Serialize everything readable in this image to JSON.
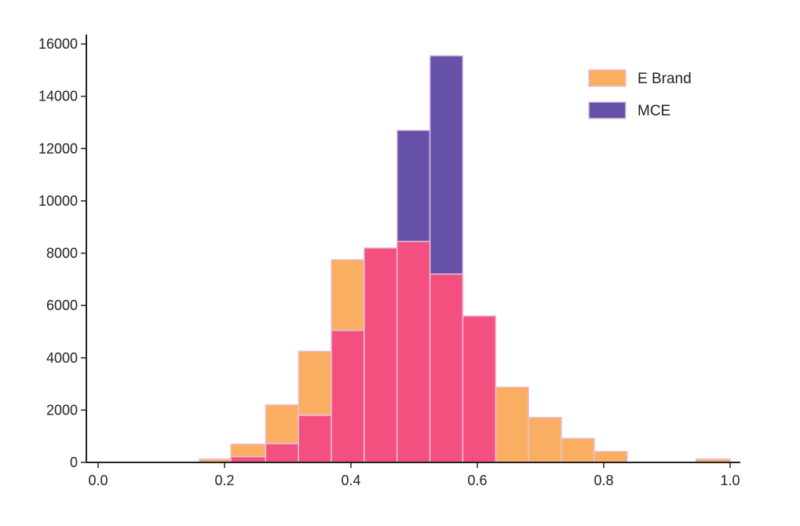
{
  "chart_data": {
    "type": "bar",
    "subtype": "overlapping-histogram",
    "title": "",
    "xlabel": "",
    "ylabel": "",
    "xlim": [
      -0.02,
      1.02
    ],
    "ylim": [
      0,
      16000
    ],
    "xticks": [
      0.0,
      0.2,
      0.4,
      0.6,
      0.8,
      1.0
    ],
    "xtick_labels": [
      "0.0",
      "0.2",
      "0.4",
      "0.6",
      "0.8",
      "1.0"
    ],
    "yticks": [
      0,
      2000,
      4000,
      6000,
      8000,
      10000,
      12000,
      14000,
      16000
    ],
    "ytick_labels": [
      "0",
      "2000",
      "4000",
      "6000",
      "8000",
      "10000",
      "12000",
      "14000",
      "16000"
    ],
    "grid": false,
    "legend_position": "top-right",
    "overlap_color": "#f4507f",
    "series": [
      {
        "name": "E Brand",
        "color": "#f9ae62",
        "bins": [
          {
            "x0": 0.16,
            "x1": 0.21,
            "value": 130
          },
          {
            "x0": 0.21,
            "x1": 0.265,
            "value": 700
          },
          {
            "x0": 0.265,
            "x1": 0.317,
            "value": 2200
          },
          {
            "x0": 0.317,
            "x1": 0.369,
            "value": 4250
          },
          {
            "x0": 0.369,
            "x1": 0.421,
            "value": 7750
          },
          {
            "x0": 0.421,
            "x1": 0.473,
            "value": 8200
          },
          {
            "x0": 0.473,
            "x1": 0.525,
            "value": 8450
          },
          {
            "x0": 0.525,
            "x1": 0.577,
            "value": 7200
          },
          {
            "x0": 0.577,
            "x1": 0.629,
            "value": 5600
          },
          {
            "x0": 0.629,
            "x1": 0.681,
            "value": 2880
          },
          {
            "x0": 0.681,
            "x1": 0.733,
            "value": 1720
          },
          {
            "x0": 0.733,
            "x1": 0.785,
            "value": 920
          },
          {
            "x0": 0.785,
            "x1": 0.837,
            "value": 420
          },
          {
            "x0": 0.946,
            "x1": 1.0,
            "value": 130
          }
        ]
      },
      {
        "name": "MCE",
        "color": "#6552a8",
        "bins": [
          {
            "x0": 0.21,
            "x1": 0.265,
            "value": 220
          },
          {
            "x0": 0.265,
            "x1": 0.317,
            "value": 720
          },
          {
            "x0": 0.317,
            "x1": 0.369,
            "value": 1800
          },
          {
            "x0": 0.369,
            "x1": 0.421,
            "value": 5050
          },
          {
            "x0": 0.421,
            "x1": 0.473,
            "value": 8200
          },
          {
            "x0": 0.473,
            "x1": 0.525,
            "value": 12700
          },
          {
            "x0": 0.525,
            "x1": 0.577,
            "value": 15550
          },
          {
            "x0": 0.577,
            "x1": 0.629,
            "value": 5600
          }
        ]
      }
    ]
  }
}
